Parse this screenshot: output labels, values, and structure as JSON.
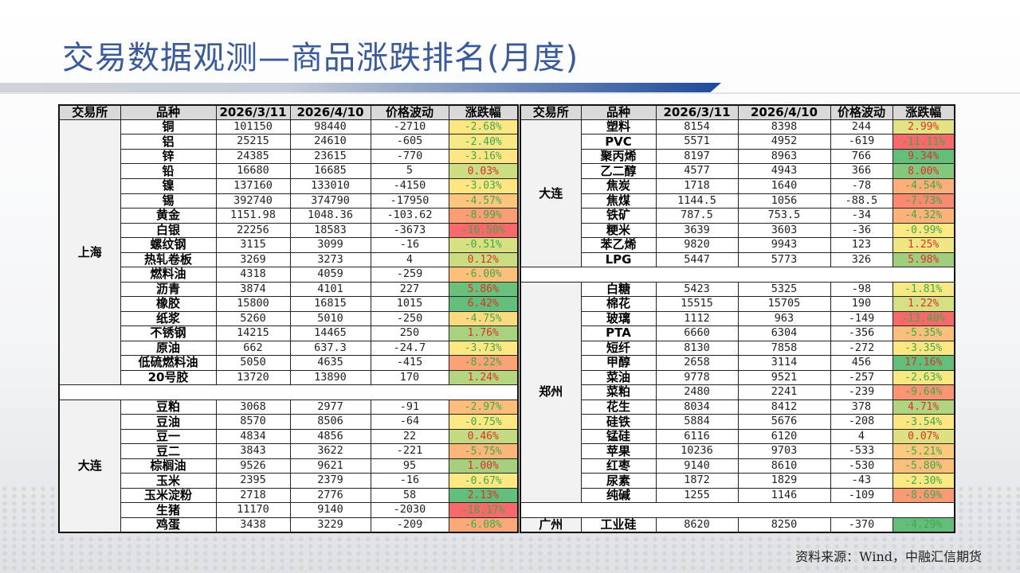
{
  "title": "交易数据观测—商品涨跌排名(月度)",
  "source": "资料来源：Wind，中融汇信期货",
  "colors": {
    "title": "#3b5a9a",
    "negative_text": "#3fa84e",
    "positive_text": "#e0302a"
  },
  "headers": [
    "交易所",
    "品种",
    "2026/3/11",
    "2026/4/10",
    "价格波动",
    "涨跌幅"
  ],
  "left_table": {
    "groups": [
      {
        "exchange": "上海",
        "rows": [
          {
            "name": "铜",
            "p1": "101150",
            "p2": "98440",
            "chg": "-2710",
            "pct": "-2.68%",
            "bg": "#fee783"
          },
          {
            "name": "铝",
            "p1": "25215",
            "p2": "24610",
            "chg": "-605",
            "pct": "-2.40%",
            "bg": "#f6e884"
          },
          {
            "name": "锌",
            "p1": "24385",
            "p2": "23615",
            "chg": "-770",
            "pct": "-3.16%",
            "bg": "#fee583"
          },
          {
            "name": "铅",
            "p1": "16680",
            "p2": "16685",
            "chg": "5",
            "pct": "0.03%",
            "bg": "#cddd82"
          },
          {
            "name": "镍",
            "p1": "137160",
            "p2": "133010",
            "chg": "-4150",
            "pct": "-3.03%",
            "bg": "#fee683"
          },
          {
            "name": "锡",
            "p1": "392740",
            "p2": "374790",
            "chg": "-17950",
            "pct": "-4.57%",
            "bg": "#fdc57d"
          },
          {
            "name": "黄金",
            "p1": "1151.98",
            "p2": "1048.36",
            "chg": "-103.62",
            "pct": "-8.99%",
            "bg": "#fa9c74"
          },
          {
            "name": "白银",
            "p1": "22256",
            "p2": "18583",
            "chg": "-3673",
            "pct": "-16.50%",
            "bg": "#f8696b"
          },
          {
            "name": "螺纹钢",
            "p1": "3115",
            "p2": "3099",
            "chg": "-16",
            "pct": "-0.51%",
            "bg": "#d8e082"
          },
          {
            "name": "热轧卷板",
            "p1": "3269",
            "p2": "3273",
            "chg": "4",
            "pct": "0.12%",
            "bg": "#cadc81"
          },
          {
            "name": "燃料油",
            "p1": "4318",
            "p2": "4059",
            "chg": "-259",
            "pct": "-6.00%",
            "bg": "#fcc07b"
          },
          {
            "name": "沥青",
            "p1": "3874",
            "p2": "4101",
            "chg": "227",
            "pct": "5.86%",
            "bg": "#6bc17c"
          },
          {
            "name": "橡胶",
            "p1": "15800",
            "p2": "16815",
            "chg": "1015",
            "pct": "6.42%",
            "bg": "#63be7b"
          },
          {
            "name": "纸浆",
            "p1": "5260",
            "p2": "5010",
            "chg": "-250",
            "pct": "-4.75%",
            "bg": "#fdd980"
          },
          {
            "name": "不锈钢",
            "p1": "14215",
            "p2": "14465",
            "chg": "250",
            "pct": "1.76%",
            "bg": "#a9d27f"
          },
          {
            "name": "原油",
            "p1": "662",
            "p2": "637.3",
            "chg": "-24.7",
            "pct": "-3.73%",
            "bg": "#ffe884"
          },
          {
            "name": "低硫燃料油",
            "p1": "5050",
            "p2": "4635",
            "chg": "-415",
            "pct": "-8.22%",
            "bg": "#fba276"
          },
          {
            "name": "20号胶",
            "p1": "13720",
            "p2": "13890",
            "chg": "170",
            "pct": "1.24%",
            "bg": "#b5d680"
          }
        ]
      },
      {
        "exchange": "大连",
        "rows": [
          {
            "name": "豆粕",
            "p1": "3068",
            "p2": "2977",
            "chg": "-91",
            "pct": "-2.97%",
            "bg": "#fcbd7b"
          },
          {
            "name": "豆油",
            "p1": "8570",
            "p2": "8506",
            "chg": "-64",
            "pct": "-0.75%",
            "bg": "#fee883"
          },
          {
            "name": "豆一",
            "p1": "4834",
            "p2": "4856",
            "chg": "22",
            "pct": "0.46%",
            "bg": "#c4da81"
          },
          {
            "name": "豆二",
            "p1": "3843",
            "p2": "3622",
            "chg": "-221",
            "pct": "-5.75%",
            "bg": "#fcb67a"
          },
          {
            "name": "棕榈油",
            "p1": "9526",
            "p2": "9621",
            "chg": "95",
            "pct": "1.00%",
            "bg": "#a6d07e"
          },
          {
            "name": "玉米",
            "p1": "2395",
            "p2": "2379",
            "chg": "-16",
            "pct": "-0.67%",
            "bg": "#fde883"
          },
          {
            "name": "玉米淀粉",
            "p1": "2718",
            "p2": "2776",
            "chg": "58",
            "pct": "2.13%",
            "bg": "#63be7b"
          },
          {
            "name": "生猪",
            "p1": "11170",
            "p2": "9140",
            "chg": "-2030",
            "pct": "-18.17%",
            "bg": "#f8696b"
          },
          {
            "name": "鸡蛋",
            "p1": "3438",
            "p2": "3229",
            "chg": "-209",
            "pct": "-6.08%",
            "bg": "#fba978"
          }
        ]
      }
    ]
  },
  "right_table": {
    "groups": [
      {
        "exchange": "大连",
        "rows": [
          {
            "name": "塑料",
            "p1": "8154",
            "p2": "8398",
            "chg": "244",
            "pct": "2.99%",
            "bg": "#e3e383"
          },
          {
            "name": "PVC",
            "p1": "5571",
            "p2": "4952",
            "chg": "-619",
            "pct": "-11.11%",
            "bg": "#f8696b"
          },
          {
            "name": "聚丙烯",
            "p1": "8197",
            "p2": "8963",
            "chg": "766",
            "pct": "9.34%",
            "bg": "#63be7b"
          },
          {
            "name": "乙二醇",
            "p1": "4577",
            "p2": "4943",
            "chg": "366",
            "pct": "8.00%",
            "bg": "#85c87d"
          },
          {
            "name": "焦炭",
            "p1": "1718",
            "p2": "1640",
            "chg": "-78",
            "pct": "-4.54%",
            "bg": "#fcaf78"
          },
          {
            "name": "焦煤",
            "p1": "1144.5",
            "p2": "1056",
            "chg": "-88.5",
            "pct": "-7.73%",
            "bg": "#f98970"
          },
          {
            "name": "铁矿",
            "p1": "787.5",
            "p2": "753.5",
            "chg": "-34",
            "pct": "-4.32%",
            "bg": "#fcb279"
          },
          {
            "name": "粳米",
            "p1": "3639",
            "p2": "3603",
            "chg": "-36",
            "pct": "-0.99%",
            "bg": "#fee883"
          },
          {
            "name": "苯乙烯",
            "p1": "9820",
            "p2": "9943",
            "chg": "123",
            "pct": "1.25%",
            "bg": "#f0e784"
          },
          {
            "name": "LPG",
            "p1": "5447",
            "p2": "5773",
            "chg": "326",
            "pct": "5.98%",
            "bg": "#a0ce7e"
          }
        ]
      },
      {
        "exchange": "郑州",
        "rows": [
          {
            "name": "白糖",
            "p1": "5423",
            "p2": "5325",
            "chg": "-98",
            "pct": "-1.81%",
            "bg": "#f6e884"
          },
          {
            "name": "棉花",
            "p1": "15515",
            "p2": "15705",
            "chg": "190",
            "pct": "1.22%",
            "bg": "#d6df82"
          },
          {
            "name": "玻璃",
            "p1": "1112",
            "p2": "963",
            "chg": "-149",
            "pct": "-13.40%",
            "bg": "#f8696b"
          },
          {
            "name": "PTA",
            "p1": "6660",
            "p2": "6304",
            "chg": "-356",
            "pct": "-5.35%",
            "bg": "#fcbf7b"
          },
          {
            "name": "短纤",
            "p1": "8130",
            "p2": "7858",
            "chg": "-272",
            "pct": "-3.35%",
            "bg": "#fee683"
          },
          {
            "name": "甲醇",
            "p1": "2658",
            "p2": "3114",
            "chg": "456",
            "pct": "17.16%",
            "bg": "#63be7b"
          },
          {
            "name": "菜油",
            "p1": "9778",
            "p2": "9521",
            "chg": "-257",
            "pct": "-2.63%",
            "bg": "#f8e884"
          },
          {
            "name": "菜粕",
            "p1": "2480",
            "p2": "2241",
            "chg": "-239",
            "pct": "-9.64%",
            "bg": "#fa9473"
          },
          {
            "name": "花生",
            "p1": "8034",
            "p2": "8412",
            "chg": "378",
            "pct": "4.71%",
            "bg": "#b0d480"
          },
          {
            "name": "硅铁",
            "p1": "5884",
            "p2": "5676",
            "chg": "-208",
            "pct": "-3.54%",
            "bg": "#fee683"
          },
          {
            "name": "锰硅",
            "p1": "6116",
            "p2": "6120",
            "chg": "4",
            "pct": "0.07%",
            "bg": "#dde182"
          },
          {
            "name": "苹果",
            "p1": "10236",
            "p2": "9703",
            "chg": "-533",
            "pct": "-5.21%",
            "bg": "#fdca7d"
          },
          {
            "name": "红枣",
            "p1": "9140",
            "p2": "8610",
            "chg": "-530",
            "pct": "-5.80%",
            "bg": "#fcbf7b"
          },
          {
            "name": "尿素",
            "p1": "1872",
            "p2": "1829",
            "chg": "-43",
            "pct": "-2.30%",
            "bg": "#fee883"
          },
          {
            "name": "纯碱",
            "p1": "1255",
            "p2": "1146",
            "chg": "-109",
            "pct": "-8.69%",
            "bg": "#fa9a74"
          }
        ]
      },
      {
        "exchange": "广州",
        "rows": [
          {
            "name": "工业硅",
            "p1": "8620",
            "p2": "8250",
            "chg": "-370",
            "pct": "-4.29%",
            "bg": "#63be7b"
          }
        ]
      }
    ]
  }
}
